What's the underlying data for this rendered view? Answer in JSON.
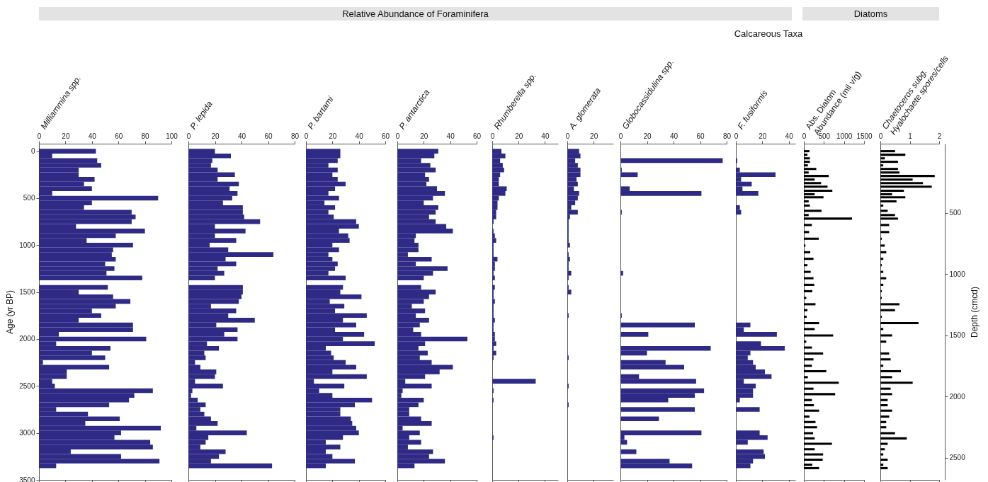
{
  "chart_data": [
    {
      "type": "bar",
      "orientation": "horizontal",
      "xlabel": "Milliammina spp.",
      "ylabel": "Age (yr BP)",
      "color": "#2e2a85",
      "annotations": [
        "Relative Abundance of Foraminifera"
      ],
      "xlim": [
        0,
        100
      ],
      "xticks": [
        0,
        20,
        40,
        60,
        80,
        100
      ],
      "ylim": [
        3500,
        -80
      ],
      "yticks": [
        0,
        500,
        1000,
        1500,
        2000,
        2500,
        3000,
        3500
      ],
      "x": [
        0,
        50,
        100,
        150,
        200,
        250,
        300,
        350,
        400,
        450,
        500,
        550,
        600,
        650,
        700,
        750,
        800,
        850,
        900,
        950,
        1000,
        1050,
        1100,
        1150,
        1200,
        1250,
        1300,
        1350,
        1400,
        1450,
        1500,
        1550,
        1600,
        1650,
        1700,
        1750,
        1800,
        1850,
        1900,
        1950,
        2000,
        2050,
        2100,
        2150,
        2200,
        2250,
        2300,
        2350,
        2400,
        2450,
        2500,
        2550,
        2600,
        2650,
        2700,
        2750,
        2800,
        2850,
        2900,
        2950,
        3000,
        3050,
        3100,
        3150,
        3200,
        3250,
        3300,
        3350
      ],
      "values": [
        43,
        10,
        44,
        47,
        30,
        30,
        42,
        34,
        40,
        10,
        90,
        40,
        34,
        70,
        73,
        70,
        28,
        80,
        58,
        36,
        71,
        56,
        55,
        58,
        50,
        57,
        51,
        78,
        null,
        52,
        30,
        56,
        69,
        58,
        40,
        47,
        30,
        71,
        71,
        15,
        81,
        13,
        54,
        40,
        50,
        3,
        53,
        21,
        21,
        10,
        12,
        86,
        72,
        68,
        53,
        13,
        37,
        61,
        35,
        92,
        62,
        57,
        84,
        86,
        24,
        62,
        91,
        13
      ]
    },
    {
      "type": "bar",
      "orientation": "horizontal",
      "xlabel": "P. lepida",
      "color": "#2e2a85",
      "xlim": [
        0,
        80
      ],
      "xticks": [
        0,
        20,
        40,
        60,
        80
      ],
      "ylim": [
        3500,
        -80
      ],
      "tick_labels": "x",
      "x": [
        0,
        50,
        100,
        150,
        200,
        250,
        300,
        350,
        400,
        450,
        500,
        550,
        600,
        650,
        700,
        750,
        800,
        850,
        900,
        950,
        1000,
        1050,
        1100,
        1150,
        1200,
        1250,
        1300,
        1350,
        1400,
        1450,
        1500,
        1550,
        1600,
        1650,
        1700,
        1750,
        1800,
        1850,
        1900,
        1950,
        2000,
        2050,
        2100,
        2150,
        2200,
        2250,
        2300,
        2350,
        2400,
        2450,
        2500,
        2550,
        2600,
        2650,
        2700,
        2750,
        2800,
        2850,
        2900,
        2950,
        3000,
        3050,
        3100,
        3150,
        3200,
        3250,
        3300,
        3350
      ],
      "values": [
        20,
        32,
        18,
        17,
        22,
        35,
        22,
        38,
        31,
        37,
        33,
        26,
        41,
        41,
        42,
        54,
        20,
        43,
        20,
        36,
        16,
        30,
        64,
        28,
        36,
        22,
        27,
        20,
        null,
        41,
        41,
        40,
        38,
        17,
        36,
        30,
        50,
        21,
        37,
        27,
        37,
        14,
        23,
        12,
        13,
        5,
        9,
        21,
        20,
        5,
        26,
        3,
        2,
        7,
        13,
        9,
        12,
        17,
        22,
        6,
        44,
        15,
        13,
        9,
        28,
        23,
        17,
        63
      ]
    },
    {
      "type": "bar",
      "orientation": "horizontal",
      "xlabel": "P. bartami",
      "color": "#2e2a85",
      "xlim": [
        0,
        60
      ],
      "xticks": [
        0,
        20,
        40,
        60
      ],
      "ylim": [
        3500,
        -80
      ],
      "tick_labels": "x",
      "x": [
        0,
        50,
        100,
        150,
        200,
        250,
        300,
        350,
        400,
        450,
        500,
        550,
        600,
        650,
        700,
        750,
        800,
        850,
        900,
        950,
        1000,
        1050,
        1100,
        1150,
        1200,
        1250,
        1300,
        1350,
        1400,
        1450,
        1500,
        1550,
        1600,
        1650,
        1700,
        1750,
        1800,
        1850,
        1900,
        1950,
        2000,
        2050,
        2100,
        2150,
        2200,
        2250,
        2300,
        2350,
        2400,
        2450,
        2500,
        2550,
        2600,
        2650,
        2700,
        2750,
        2800,
        2850,
        2900,
        2950,
        3000,
        3050,
        3100,
        3150,
        3200,
        3250,
        3300,
        3350
      ],
      "values": [
        26,
        26,
        24,
        17,
        24,
        20,
        24,
        30,
        22,
        17,
        25,
        14,
        22,
        17,
        21,
        38,
        40,
        25,
        32,
        33,
        20,
        25,
        17,
        20,
        24,
        22,
        17,
        30,
        null,
        28,
        26,
        42,
        18,
        29,
        22,
        46,
        28,
        38,
        22,
        44,
        28,
        52,
        15,
        19,
        21,
        30,
        38,
        20,
        46,
        6,
        29,
        10,
        20,
        50,
        37,
        26,
        26,
        34,
        35,
        38,
        40,
        28,
        15,
        26,
        15,
        20,
        37,
        15
      ]
    },
    {
      "type": "bar",
      "orientation": "horizontal",
      "xlabel": "P. antarctica",
      "color": "#2e2a85",
      "xlim": [
        0,
        60
      ],
      "xticks": [
        0,
        20,
        40,
        60
      ],
      "ylim": [
        3500,
        -80
      ],
      "tick_labels": "x",
      "x": [
        0,
        50,
        100,
        150,
        200,
        250,
        300,
        350,
        400,
        450,
        500,
        550,
        600,
        650,
        700,
        750,
        800,
        850,
        900,
        950,
        1000,
        1050,
        1100,
        1150,
        1200,
        1250,
        1300,
        1350,
        1400,
        1450,
        1500,
        1550,
        1600,
        1650,
        1700,
        1750,
        1800,
        1850,
        1900,
        1950,
        2000,
        2050,
        2100,
        2150,
        2200,
        2250,
        2300,
        2350,
        2400,
        2450,
        2500,
        2550,
        2600,
        2650,
        2700,
        2750,
        2800,
        2850,
        2900,
        2950,
        3000,
        3050,
        3100,
        3150,
        3200,
        3250,
        3300,
        3350
      ],
      "values": [
        31,
        28,
        18,
        25,
        29,
        21,
        24,
        22,
        30,
        36,
        27,
        20,
        31,
        29,
        24,
        29,
        37,
        42,
        14,
        13,
        16,
        16,
        8,
        26,
        14,
        38,
        27,
        20,
        null,
        18,
        29,
        24,
        20,
        11,
        21,
        14,
        24,
        17,
        12,
        18,
        53,
        21,
        16,
        23,
        17,
        26,
        42,
        32,
        21,
        6,
        26,
        4,
        3,
        20,
        16,
        9,
        9,
        18,
        26,
        4,
        17,
        9,
        18,
        8,
        27,
        24,
        36,
        13
      ]
    },
    {
      "type": "bar",
      "orientation": "horizontal",
      "xlabel": "Rhumberella spp.",
      "color": "#2e2a85",
      "xlim": [
        0,
        50
      ],
      "xticks": [
        0,
        20,
        40
      ],
      "ylim": [
        3500,
        -80
      ],
      "tick_labels": "x",
      "x": [
        0,
        50,
        100,
        150,
        200,
        250,
        300,
        350,
        400,
        450,
        500,
        550,
        600,
        650,
        700,
        750,
        850,
        900,
        950,
        1000,
        1050,
        1100,
        1150,
        1200,
        1250,
        1300,
        1350,
        1450,
        1500,
        1550,
        1600,
        1650,
        1700,
        1750,
        1800,
        1850,
        1900,
        1950,
        2000,
        2050,
        2100,
        2150,
        2200,
        2450,
        2550,
        2650,
        3050
      ],
      "values": [
        7,
        10,
        6,
        8,
        9,
        6,
        5,
        5,
        11,
        10,
        5,
        4,
        4,
        3,
        3,
        1,
        1,
        2,
        3,
        1,
        1,
        1,
        4,
        2,
        2,
        1,
        2,
        2,
        1,
        1,
        2,
        1,
        1,
        1,
        2,
        1,
        1,
        2,
        2,
        3,
        1,
        3,
        1,
        33,
        1,
        1,
        1
      ]
    },
    {
      "type": "bar",
      "orientation": "horizontal",
      "xlabel": "A. glomerata",
      "color": "#2e2a85",
      "xlim": [
        0,
        35
      ],
      "xticks": [
        0,
        20
      ],
      "ylim": [
        3500,
        -80
      ],
      "tick_labels": "x",
      "x": [
        0,
        50,
        100,
        150,
        200,
        250,
        300,
        350,
        400,
        450,
        500,
        550,
        600,
        650,
        700,
        750,
        800,
        850,
        900,
        950,
        1000,
        1100,
        1150,
        1200,
        1250,
        1300,
        1350,
        1450,
        1500,
        1750,
        2200,
        2500,
        2700
      ],
      "values": [
        9,
        10,
        6,
        8,
        10,
        10,
        7,
        8,
        5,
        9,
        8,
        6,
        3,
        8,
        2,
        1,
        1,
        1,
        1,
        1,
        2,
        1,
        2,
        1,
        1,
        3,
        1,
        1,
        3,
        1,
        1,
        1,
        1
      ]
    },
    {
      "type": "bar",
      "orientation": "horizontal",
      "xlabel": "Globocassidulina spp.",
      "color": "#2e2a85",
      "annotations": [
        "Calcareous Taxa"
      ],
      "xlim": [
        0,
        80
      ],
      "xticks": [
        0,
        20,
        40,
        60,
        80
      ],
      "ylim": [
        3500,
        -80
      ],
      "tick_labels": "x",
      "x": [
        100,
        200,
        250,
        400,
        450,
        650,
        1300,
        1750,
        1850,
        1950,
        2100,
        2150,
        2250,
        2300,
        2400,
        2450,
        2550,
        2600,
        2650,
        2750,
        2850,
        3000,
        3050,
        3100,
        3200,
        3300,
        3350
      ],
      "values": [
        77,
        1,
        13,
        7,
        61,
        1,
        2,
        1,
        56,
        21,
        68,
        20,
        34,
        48,
        14,
        57,
        63,
        56,
        36,
        56,
        29,
        61,
        3,
        5,
        12,
        37,
        54
      ]
    },
    {
      "type": "bar",
      "orientation": "horizontal",
      "xlabel": "F. fusiformis",
      "color": "#2e2a85",
      "xlim": [
        0,
        45
      ],
      "xticks": [
        0,
        20,
        40
      ],
      "ylim": [
        3500,
        -80
      ],
      "tick_labels": "x",
      "x": [
        100,
        200,
        250,
        300,
        350,
        400,
        450,
        600,
        650,
        1850,
        1900,
        1950,
        2050,
        2100,
        2150,
        2200,
        2250,
        2300,
        2350,
        2400,
        2450,
        2500,
        2550,
        2600,
        2650,
        2750,
        3000,
        3050,
        3100,
        3200,
        3250,
        3300,
        3350
      ],
      "values": [
        1,
        3,
        30,
        4,
        12,
        5,
        17,
        3,
        4,
        11,
        6,
        31,
        19,
        37,
        11,
        9,
        13,
        15,
        22,
        27,
        6,
        15,
        13,
        13,
        3,
        18,
        18,
        24,
        9,
        21,
        22,
        13,
        11
      ]
    },
    {
      "type": "bar",
      "orientation": "horizontal",
      "xlabel": "Abs. Diatom\nAbundance (mil v/g)",
      "color": "#000000",
      "annotations": [
        "Diatoms"
      ],
      "xlim": [
        0,
        1500
      ],
      "xticks": [
        0,
        500,
        1000,
        1500
      ],
      "ylim": [
        3500,
        -80
      ],
      "tick_labels": "x",
      "x": [
        0,
        38,
        76,
        113,
        151,
        189,
        227,
        264,
        302,
        340,
        378,
        421,
        458,
        491,
        534,
        579,
        635,
        680,
        718,
        786,
        861,
        932,
        1005,
        1076,
        1146,
        1214,
        1285,
        1353,
        1423,
        1491,
        1562,
        1630,
        1693,
        1763,
        1831,
        1894,
        1962,
        2028,
        2091,
        2154,
        2217,
        2285,
        2343,
        2406,
        2466,
        2529,
        2587,
        2650,
        2705,
        2763,
        2826,
        2884,
        2940,
        3003,
        3058,
        3116,
        3174,
        3229,
        3285,
        3338,
        3375
      ],
      "values": [
        140,
        90,
        150,
        150,
        100,
        310,
        120,
        620,
        270,
        430,
        590,
        710,
        270,
        490,
        120,
        150,
        440,
        120,
        1200,
        200,
        130,
        370,
        40,
        160,
        240,
        90,
        170,
        240,
        260,
        210,
        60,
        290,
        90,
        70,
        380,
        270,
        730,
        60,
        200,
        480,
        240,
        200,
        560,
        100,
        870,
        240,
        780,
        200,
        250,
        380,
        140,
        290,
        330,
        230,
        270,
        700,
        270,
        480,
        470,
        210,
        380
      ]
    },
    {
      "type": "bar",
      "orientation": "horizontal",
      "xlabel": "Chaetoceros subg.\nHyalochaete spores/cells",
      "color": "#000000",
      "xlim": [
        0,
        2
      ],
      "xticks": [
        0,
        1,
        2
      ],
      "ylim": [
        3500,
        -80
      ],
      "tick_labels": "xy2",
      "y2lim": [
        2680,
        -65
      ],
      "y2ticks": [
        500,
        1000,
        1500,
        2000,
        2500
      ],
      "y2label": "Depth (cmcd)",
      "x": [
        0,
        38,
        76,
        113,
        151,
        189,
        227,
        264,
        302,
        340,
        378,
        421,
        458,
        491,
        534,
        579,
        635,
        680,
        718,
        786,
        861,
        932,
        1005,
        1076,
        1146,
        1214,
        1285,
        1353,
        1423,
        1491,
        1562,
        1630,
        1693,
        1763,
        1831,
        1894,
        1962,
        2028,
        2091,
        2154,
        2217,
        2285,
        2343,
        2406,
        2466,
        2529,
        2587,
        2650,
        2705,
        2763,
        2826,
        2884,
        2940,
        3003,
        3058,
        3116,
        3174,
        3229,
        3285,
        3338,
        3375
      ],
      "values": [
        0.5,
        0.85,
        0.15,
        0.6,
        0.1,
        0.6,
        0.65,
        1.85,
        1.1,
        1.45,
        1.75,
        0.8,
        0.4,
        0.85,
        0.55,
        0.1,
        0.25,
        0.5,
        0.6,
        0.3,
        0.3,
        0.05,
        0.15,
        0.2,
        0.1,
        0.05,
        0.1,
        0.2,
        0.1,
        0.05,
        0.05,
        0.65,
        0.5,
        0.05,
        1.3,
        0.1,
        0.4,
        0.2,
        null,
        0.3,
        0.35,
        0.1,
        0.7,
        0.4,
        1.1,
        0.35,
        0.4,
        0.25,
        0.25,
        0.4,
        0.3,
        0.2,
        0.2,
        0.5,
        0.9,
        0.25,
        0.15,
        0.1,
        0.25,
        0.1,
        0.25
      ]
    }
  ]
}
